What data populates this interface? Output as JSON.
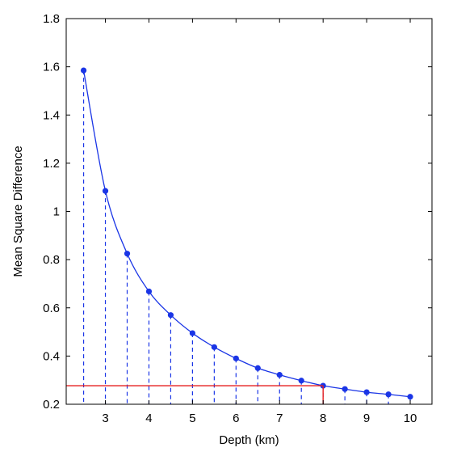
{
  "chart_data": {
    "type": "line",
    "title": "",
    "xlabel": "Depth (km)",
    "ylabel": "Mean Square Difference",
    "xlim": [
      2.1,
      10.5
    ],
    "ylim": [
      0.2,
      1.8
    ],
    "xticks": [
      3,
      4,
      5,
      6,
      7,
      8,
      9,
      10
    ],
    "yticks": [
      0.2,
      0.4,
      0.6,
      0.8,
      1,
      1.2,
      1.4,
      1.6,
      1.8
    ],
    "grid": false,
    "series": [
      {
        "x": [
          2.5,
          3,
          3.5,
          4,
          4.5,
          5,
          5.5,
          6,
          6.5,
          7,
          7.5,
          8,
          8.5,
          9,
          9.5,
          10
        ],
        "y": [
          1.585,
          1.085,
          0.825,
          0.668,
          0.57,
          0.495,
          0.437,
          0.39,
          0.35,
          0.322,
          0.298,
          0.277,
          0.263,
          0.25,
          0.241,
          0.231
        ]
      }
    ],
    "annotations": {
      "horizontal_line": {
        "y": 0.277,
        "x_from": 2.1,
        "x_to": 8
      },
      "vertical_line": {
        "x": 8,
        "y_from": 0.2,
        "y_to": 0.277
      }
    },
    "colors": {
      "series": "#1a35e6",
      "annotation": "#e61e1e",
      "axes": "#000000"
    }
  }
}
